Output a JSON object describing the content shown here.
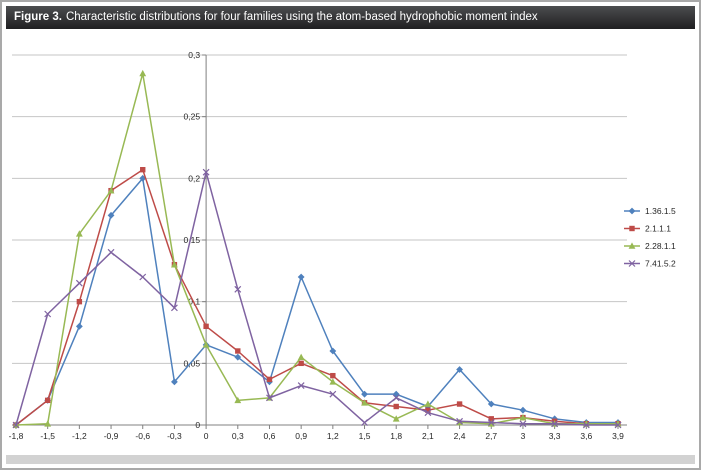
{
  "header": {
    "label": "Figure 3.",
    "title": "Characteristic distributions for four families using the atom-based hydrophobic moment index"
  },
  "chart_data": {
    "type": "line",
    "title": "",
    "xlabel": "",
    "ylabel": "",
    "ylim": [
      0,
      0.3
    ],
    "grid": true,
    "legend_position": "right",
    "x": [
      -1.8,
      -1.5,
      -1.2,
      -0.9,
      -0.6,
      -0.3,
      0,
      0.3,
      0.6,
      0.9,
      1.2,
      1.5,
      1.8,
      2.1,
      2.4,
      2.7,
      3,
      3.3,
      3.6,
      3.9
    ],
    "x_tick_labels": [
      "-1,8",
      "-1,5",
      "-1,2",
      "-0,9",
      "-0,6",
      "-0,3",
      "0",
      "0,3",
      "0,6",
      "0,9",
      "1,2",
      "1,5",
      "1,8",
      "2,1",
      "2,4",
      "2,7",
      "3",
      "3,3",
      "3,6",
      "3,9"
    ],
    "y_ticks": [
      0,
      0.05,
      0.1,
      0.15,
      0.2,
      0.25,
      0.3
    ],
    "y_tick_labels": [
      "0",
      "0,05",
      "0,1",
      "0,15",
      "0,2",
      "0,25",
      "0,3"
    ],
    "colors": {
      "grid": "#c6c6c6",
      "axis": "#808080"
    },
    "series": [
      {
        "name": "1.36.1.5",
        "color": "#4f81bd",
        "marker": "diamond",
        "values": [
          0,
          0.02,
          0.08,
          0.17,
          0.2,
          0.035,
          0.065,
          0.055,
          0.035,
          0.12,
          0.06,
          0.025,
          0.025,
          0.015,
          0.045,
          0.017,
          0.012,
          0.005,
          0.002,
          0.002
        ]
      },
      {
        "name": "2.1.1.1",
        "color": "#be4b48",
        "marker": "square",
        "values": [
          0,
          0.02,
          0.1,
          0.19,
          0.207,
          0.13,
          0.08,
          0.06,
          0.037,
          0.05,
          0.04,
          0.018,
          0.015,
          0.012,
          0.017,
          0.005,
          0.006,
          0.003,
          0.001,
          0.001
        ]
      },
      {
        "name": "2.28.1.1",
        "color": "#98b954",
        "marker": "triangle",
        "values": [
          0,
          0.001,
          0.155,
          0.19,
          0.285,
          0.13,
          0.065,
          0.02,
          0.022,
          0.055,
          0.035,
          0.018,
          0.005,
          0.017,
          0.002,
          0.001,
          0.006,
          0.001,
          0.001,
          0.001
        ]
      },
      {
        "name": "7.41.5.2",
        "color": "#7f63a1",
        "marker": "x",
        "values": [
          0,
          0.09,
          0.115,
          0.14,
          0.12,
          0.095,
          0.205,
          0.11,
          0.022,
          0.032,
          0.025,
          0.002,
          0.022,
          0.01,
          0.003,
          0.002,
          0.001,
          0.001,
          0,
          0
        ]
      }
    ]
  }
}
